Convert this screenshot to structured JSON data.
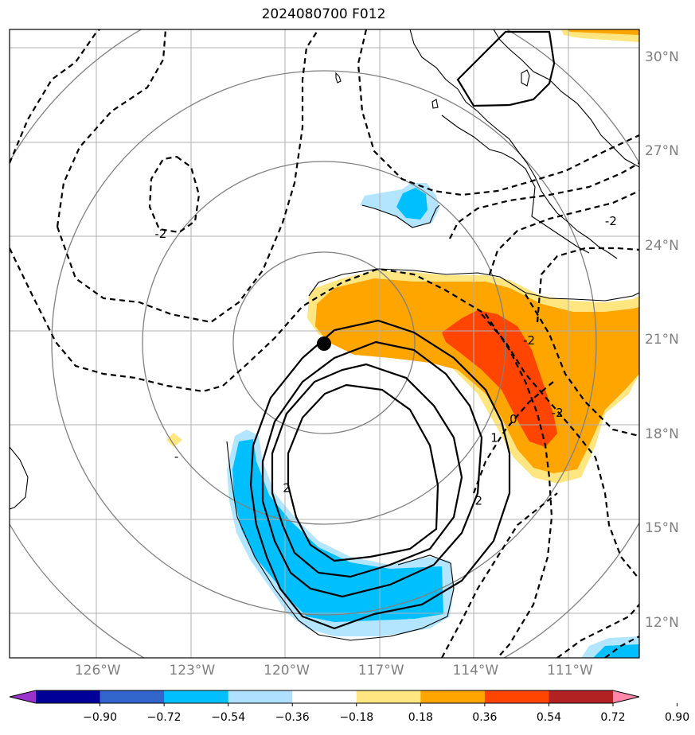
{
  "title": "2024080700 F012",
  "lat_labels": [
    {
      "label": "30°N",
      "lat": 30
    },
    {
      "label": "27°N",
      "lat": 27
    },
    {
      "label": "24°N",
      "lat": 24
    },
    {
      "label": "21°N",
      "lat": 21
    },
    {
      "label": "18°N",
      "lat": 18
    },
    {
      "label": "15°N",
      "lat": 15
    },
    {
      "label": "12°N",
      "lat": 12
    }
  ],
  "lon_labels": [
    {
      "label": "126°W",
      "lon": -126
    },
    {
      "label": "123°W",
      "lon": -123
    },
    {
      "label": "120°W",
      "lon": -120
    },
    {
      "label": "117°W",
      "lon": -117
    },
    {
      "label": "114°W",
      "lon": -114
    },
    {
      "label": "111°W",
      "lon": -111
    }
  ],
  "map_extent": {
    "lon_min": -128.8,
    "lon_max": -108.8,
    "lat_min": 10.9,
    "lat_max": 30.9
  },
  "storm_center": {
    "lon": -118.7,
    "lat": 20.6
  },
  "range_rings_center": {
    "lon": -118.6,
    "lat": 20.6
  },
  "contour_labels": [
    {
      "text": "-2",
      "lon": -124.0,
      "lat": 24.4
    },
    {
      "text": "-2",
      "lon": -109.7,
      "lat": 24.8
    },
    {
      "text": "-2",
      "lon": -112.3,
      "lat": 21.0
    },
    {
      "text": "-2",
      "lon": -111.4,
      "lat": 18.7
    },
    {
      "text": "0",
      "lon": -112.8,
      "lat": 18.5
    },
    {
      "text": "1",
      "lon": -113.4,
      "lat": 17.9
    },
    {
      "text": "2",
      "lon": -113.9,
      "lat": 15.9
    },
    {
      "text": "2",
      "lon": -120.0,
      "lat": 16.3
    },
    {
      "text": "-",
      "lon": -123.5,
      "lat": 17.3
    }
  ],
  "colorbar": {
    "labels": [
      "−0.90",
      "−0.72",
      "−0.54",
      "−0.36",
      "−0.18",
      "0.18",
      "0.36",
      "0.54",
      "0.72",
      "0.90"
    ],
    "colors": [
      "#9933cc",
      "#000099",
      "#3366cc",
      "#00bfff",
      "#b0e0ff",
      "#ffffff",
      "#ffe680",
      "#ffa500",
      "#ff4500",
      "#b22222",
      "#ff88aa"
    ]
  },
  "fill_colors": {
    "light_blue": "#b3e5ff",
    "blue": "#00bfff",
    "light_yellow": "#ffe680",
    "orange": "#ffa500",
    "red_orange": "#ff4500"
  }
}
